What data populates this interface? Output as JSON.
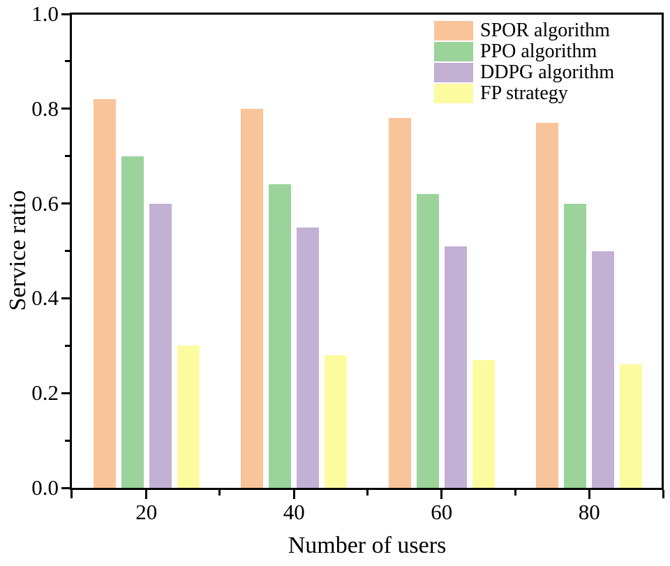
{
  "chart_data": {
    "type": "bar",
    "title": "",
    "xlabel": "Number of users",
    "ylabel": "Service ratio",
    "categories": [
      "20",
      "40",
      "60",
      "80"
    ],
    "series": [
      {
        "name": "SPOR algorithm",
        "color": "#F9C499",
        "values": [
          0.82,
          0.8,
          0.78,
          0.77
        ]
      },
      {
        "name": "PPO algorithm",
        "color": "#9BD39B",
        "values": [
          0.7,
          0.64,
          0.62,
          0.6
        ]
      },
      {
        "name": "DDPG algorithm",
        "color": "#C2B1D5",
        "values": [
          0.6,
          0.55,
          0.51,
          0.5
        ]
      },
      {
        "name": "FP strategy",
        "color": "#FDFBA0",
        "values": [
          0.3,
          0.28,
          0.27,
          0.26
        ]
      }
    ],
    "ylim": [
      0.0,
      1.0
    ],
    "y_major_ticks": [
      0.0,
      0.2,
      0.4,
      0.6,
      0.8,
      1.0
    ],
    "y_tick_labels": [
      "0.0",
      "0.2",
      "0.4",
      "0.6",
      "0.8",
      "1.0"
    ],
    "y_minor_ticks": [
      0.1,
      0.3,
      0.5,
      0.7,
      0.9
    ],
    "legend_position": "top-right",
    "grid": false,
    "axis_color": "#000000",
    "text_color": "#000000"
  }
}
